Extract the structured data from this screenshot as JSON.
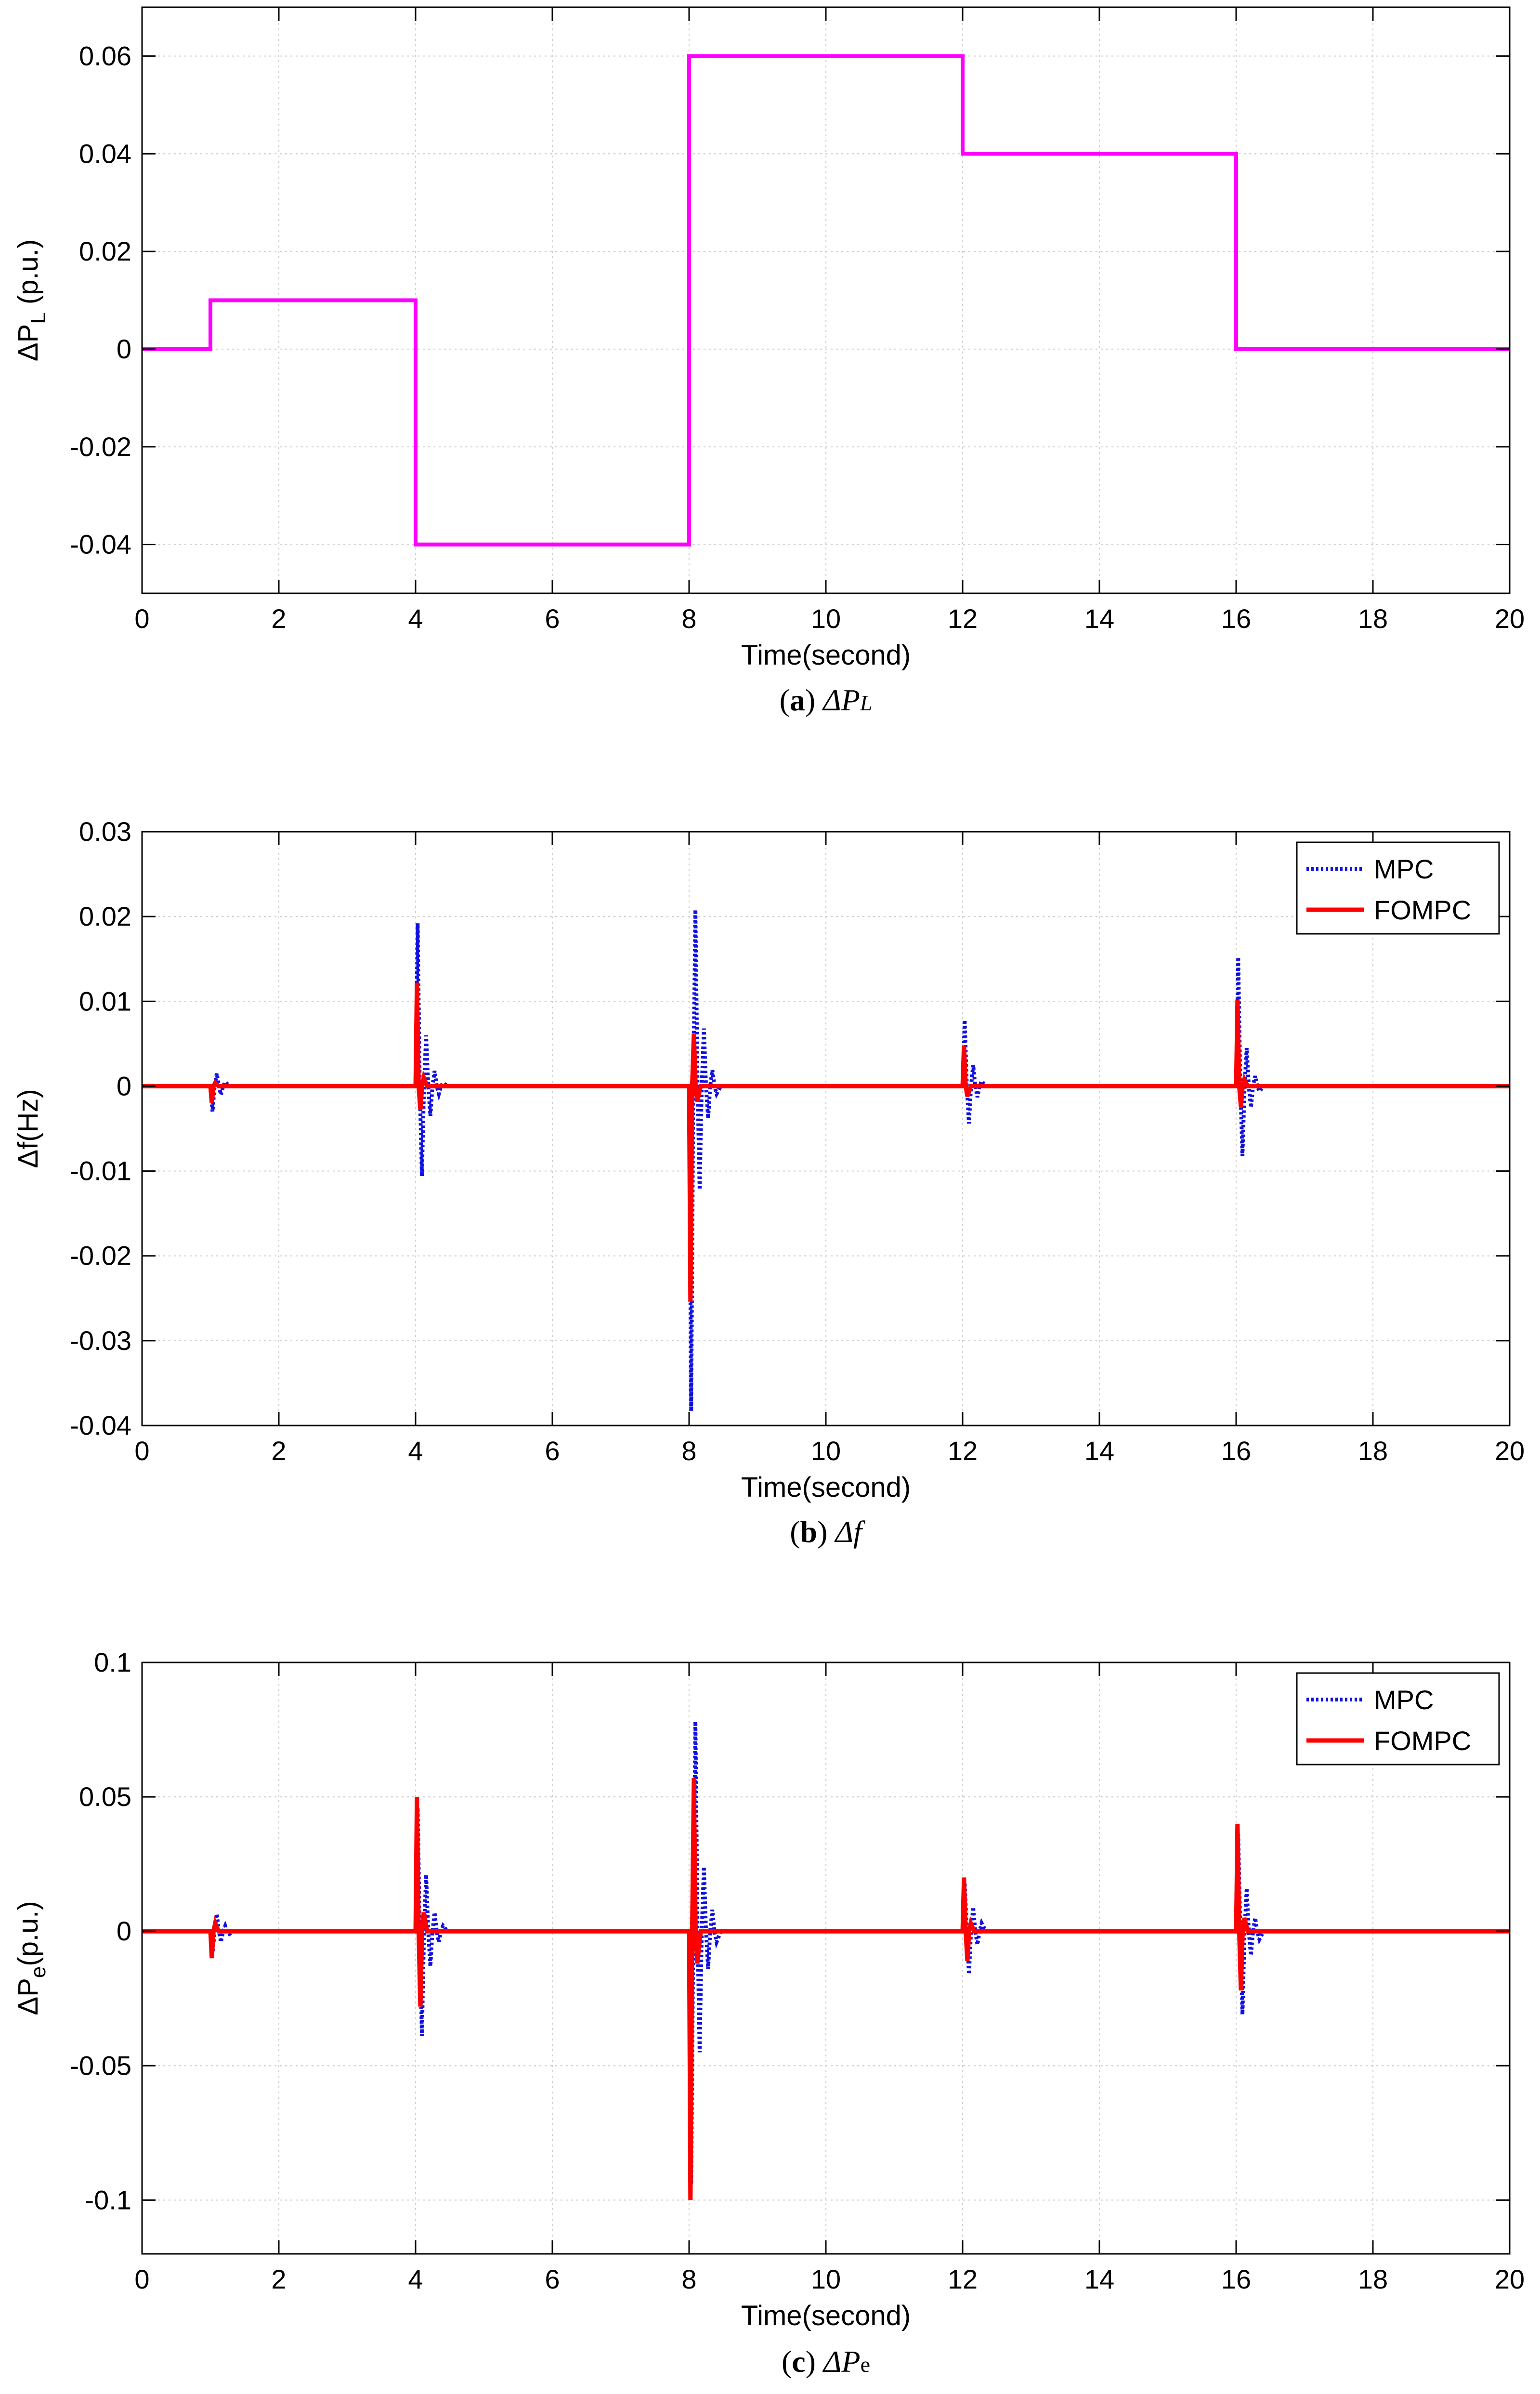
{
  "colors": {
    "pl_line": "#ff00ff",
    "mpc_line": "#1010e0",
    "fompc_line": "#ff0000",
    "grid": "#d0d0d0",
    "axis": "#000000"
  },
  "chart_data": [
    {
      "id": "a",
      "type": "line",
      "title": "",
      "xlabel": "Time(second)",
      "ylabel_main": "ΔP",
      "ylabel_sub": "L",
      "ylabel_tail": " (p.u.)",
      "xlim": [
        0,
        20
      ],
      "ylim": [
        -0.05,
        0.07
      ],
      "xticks": [
        0,
        2,
        4,
        6,
        8,
        10,
        12,
        14,
        16,
        18,
        20
      ],
      "xtick_labels": [
        "0",
        "2",
        "4",
        "6",
        "8",
        "10",
        "12",
        "14",
        "16",
        "18",
        "20"
      ],
      "yticks": [
        -0.04,
        -0.02,
        0,
        0.02,
        0.04,
        0.06
      ],
      "ytick_labels": [
        "-0.04",
        "-0.02",
        "0",
        "0.02",
        "0.04",
        "0.06"
      ],
      "grid": true,
      "legend": null,
      "caption": {
        "letter": "a",
        "symbol": "ΔP",
        "sub": "L"
      },
      "series": [
        {
          "name": "ΔP_L",
          "style": "step",
          "x": [
            0,
            1,
            1,
            4,
            4,
            8,
            8,
            12,
            12,
            16,
            16,
            20
          ],
          "y": [
            0,
            0,
            0.01,
            0.01,
            -0.04,
            -0.04,
            0.06,
            0.06,
            0.04,
            0.04,
            0,
            0
          ]
        }
      ]
    },
    {
      "id": "b",
      "type": "line",
      "title": "",
      "xlabel": "Time(second)",
      "ylabel_main": "Δf(Hz)",
      "ylabel_sub": "",
      "ylabel_tail": "",
      "xlim": [
        0,
        20
      ],
      "ylim": [
        -0.04,
        0.03
      ],
      "xticks": [
        0,
        2,
        4,
        6,
        8,
        10,
        12,
        14,
        16,
        18,
        20
      ],
      "xtick_labels": [
        "0",
        "2",
        "4",
        "6",
        "8",
        "10",
        "12",
        "14",
        "16",
        "18",
        "20"
      ],
      "yticks": [
        -0.04,
        -0.03,
        -0.02,
        -0.01,
        0,
        0.01,
        0.02,
        0.03
      ],
      "ytick_labels": [
        "-0.04",
        "-0.03",
        "-0.02",
        "-0.01",
        "0",
        "0.01",
        "0.02",
        "0.03"
      ],
      "grid": true,
      "legend": {
        "position": "top-right",
        "entries": [
          "MPC",
          "FOMPC"
        ]
      },
      "caption": {
        "letter": "b",
        "symbol": "Δf",
        "sub": ""
      },
      "series": [
        {
          "name": "MPC",
          "style": "dotted",
          "events": [
            {
              "t": 1,
              "peaks": [
                -0.003,
                0.0015,
                -0.001,
                0.0005
              ]
            },
            {
              "t": 4,
              "peaks": [
                0.0192,
                -0.0106,
                0.006,
                -0.0035,
                0.0018,
                -0.0009,
                0.0004
              ]
            },
            {
              "t": 8,
              "peaks": [
                -0.0383,
                0.0208,
                -0.0122,
                0.0068,
                -0.0038,
                0.0019,
                -0.0009
              ]
            },
            {
              "t": 12,
              "peaks": [
                0.0078,
                -0.0044,
                0.0025,
                -0.0013,
                0.0006
              ]
            },
            {
              "t": 16,
              "peaks": [
                0.0152,
                -0.0082,
                0.0045,
                -0.0025,
                0.0012,
                -0.0006
              ]
            }
          ]
        },
        {
          "name": "FOMPC",
          "style": "solid",
          "events": [
            {
              "t": 1,
              "peaks": [
                -0.002,
                0.0004
              ]
            },
            {
              "t": 4,
              "peaks": [
                0.0122,
                -0.0028,
                0.001
              ]
            },
            {
              "t": 8,
              "peaks": [
                -0.0254,
                0.0062,
                -0.0018
              ]
            },
            {
              "t": 12,
              "peaks": [
                0.0048,
                -0.0012
              ]
            },
            {
              "t": 16,
              "peaks": [
                0.0102,
                -0.0024,
                0.0008
              ]
            }
          ]
        }
      ]
    },
    {
      "id": "c",
      "type": "line",
      "title": "",
      "xlabel": "Time(second)",
      "ylabel_main": "ΔP",
      "ylabel_sub": "e",
      "ylabel_tail": "(p.u.)",
      "xlim": [
        0,
        20
      ],
      "ylim": [
        -0.12,
        0.1
      ],
      "xticks": [
        0,
        2,
        4,
        6,
        8,
        10,
        12,
        14,
        16,
        18,
        20
      ],
      "xtick_labels": [
        "0",
        "2",
        "4",
        "6",
        "8",
        "10",
        "12",
        "14",
        "16",
        "18",
        "20"
      ],
      "yticks": [
        -0.1,
        -0.05,
        0,
        0.05,
        0.1
      ],
      "ytick_labels": [
        "-0.1",
        "-0.05",
        "0",
        "0.05",
        "0.1"
      ],
      "grid": true,
      "legend": {
        "position": "top-right",
        "entries": [
          "MPC",
          "FOMPC"
        ]
      },
      "caption": {
        "letter": "c",
        "symbol": "ΔP",
        "sub": "e"
      },
      "series": [
        {
          "name": "MPC",
          "style": "dotted",
          "events": [
            {
              "t": 1,
              "peaks": [
                -0.008,
                0.0065,
                -0.004,
                0.002,
                -0.001
              ]
            },
            {
              "t": 4,
              "peaks": [
                0.046,
                -0.039,
                0.021,
                -0.013,
                0.007,
                -0.004,
                0.002
              ]
            },
            {
              "t": 8,
              "peaks": [
                -0.094,
                0.078,
                -0.045,
                0.024,
                -0.014,
                0.008,
                -0.004
              ]
            },
            {
              "t": 12,
              "peaks": [
                0.018,
                -0.016,
                0.009,
                -0.005,
                0.003
              ]
            },
            {
              "t": 16,
              "peaks": [
                0.036,
                -0.031,
                0.016,
                -0.009,
                0.005,
                -0.003
              ]
            }
          ]
        },
        {
          "name": "FOMPC",
          "style": "solid",
          "events": [
            {
              "t": 1,
              "peaks": [
                -0.01,
                0.003
              ]
            },
            {
              "t": 4,
              "peaks": [
                0.05,
                -0.028,
                0.007
              ]
            },
            {
              "t": 8,
              "peaks": [
                -0.1,
                0.057,
                -0.012
              ]
            },
            {
              "t": 12,
              "peaks": [
                0.02,
                -0.011,
                0.003
              ]
            },
            {
              "t": 16,
              "peaks": [
                0.04,
                -0.022,
                0.005
              ]
            }
          ]
        }
      ]
    }
  ]
}
